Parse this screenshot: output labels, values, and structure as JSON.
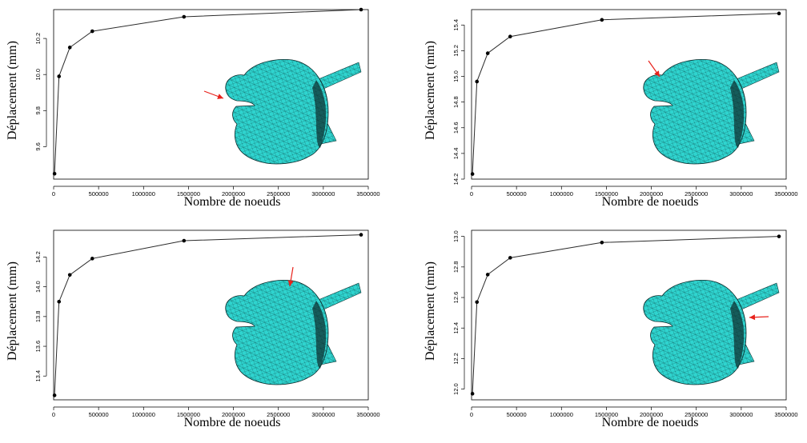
{
  "chart_data": [
    {
      "type": "line",
      "xlabel": "Nombre de noeuds",
      "ylabel": "Déplacement (mm)",
      "xlim": [
        0,
        3500000
      ],
      "ylim": [
        9.42,
        10.36
      ],
      "xticks": [
        "0",
        "500000",
        "1000000",
        "1500000",
        "2000000",
        "2500000",
        "3000000",
        "3500000"
      ],
      "yticks": [
        "9.6",
        "9.8",
        "10.0",
        "10.2"
      ],
      "ytick_values": [
        9.6,
        9.8,
        10.0,
        10.2
      ],
      "x": [
        10000,
        60000,
        180000,
        430000,
        1450000,
        3420000
      ],
      "y": [
        9.45,
        9.99,
        10.15,
        10.24,
        10.32,
        10.36
      ],
      "arrow": "left-of-nose"
    },
    {
      "type": "line",
      "xlabel": "Nombre de noeuds",
      "ylabel": "Déplacement (mm)",
      "xlim": [
        0,
        3500000
      ],
      "ylim": [
        14.2,
        15.52
      ],
      "xticks": [
        "0",
        "500000",
        "1000000",
        "1500000",
        "2000000",
        "2500000",
        "3000000",
        "3500000"
      ],
      "yticks": [
        "14.2",
        "14.4",
        "14.6",
        "14.8",
        "15.0",
        "15.2",
        "15.4"
      ],
      "ytick_values": [
        14.2,
        14.4,
        14.6,
        14.8,
        15.0,
        15.2,
        15.4
      ],
      "x": [
        10000,
        60000,
        180000,
        430000,
        1450000,
        3420000
      ],
      "y": [
        14.24,
        14.96,
        15.18,
        15.31,
        15.44,
        15.49
      ],
      "arrow": "top-left-of-head"
    },
    {
      "type": "line",
      "xlabel": "Nombre de noeuds",
      "ylabel": "Déplacement (mm)",
      "xlim": [
        0,
        3500000
      ],
      "ylim": [
        13.24,
        14.38
      ],
      "xticks": [
        "0",
        "500000",
        "1000000",
        "1500000",
        "2000000",
        "2500000",
        "3000000",
        "3500000"
      ],
      "yticks": [
        "13.4",
        "13.6",
        "13.8",
        "14.0",
        "14.2"
      ],
      "ytick_values": [
        13.4,
        13.6,
        13.8,
        14.0,
        14.2
      ],
      "x": [
        10000,
        60000,
        180000,
        430000,
        1450000,
        3420000
      ],
      "y": [
        13.27,
        13.9,
        14.08,
        14.19,
        14.31,
        14.35
      ],
      "arrow": "top-of-head"
    },
    {
      "type": "line",
      "xlabel": "Nombre de noeuds",
      "ylabel": "Déplacement (mm)",
      "xlim": [
        0,
        3500000
      ],
      "ylim": [
        11.93,
        13.04
      ],
      "xticks": [
        "0",
        "500000",
        "1000000",
        "1500000",
        "2000000",
        "2500000",
        "3000000",
        "3500000"
      ],
      "yticks": [
        "12.0",
        "12.2",
        "12.4",
        "12.6",
        "12.8",
        "13.0"
      ],
      "ytick_values": [
        12.0,
        12.2,
        12.4,
        12.6,
        12.8,
        13.0
      ],
      "x": [
        10000,
        60000,
        180000,
        430000,
        1450000,
        3420000
      ],
      "y": [
        11.97,
        12.57,
        12.75,
        12.86,
        12.96,
        13.0
      ],
      "arrow": "right-of-head"
    }
  ],
  "colors": {
    "line": "#2b2b2b",
    "points": "#000000",
    "mesh_fill": "#2fd4cf",
    "mesh_lines": "#0a3a3a",
    "arrow": "#e8221c"
  }
}
